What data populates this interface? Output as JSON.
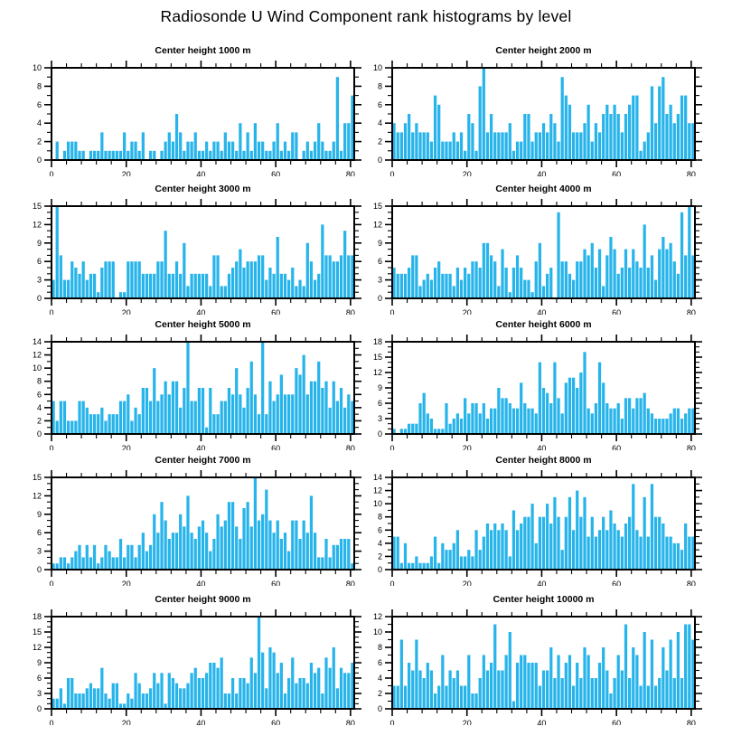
{
  "chart_data": {
    "type": "bar",
    "title": "Radiosonde U Wind Component rank histograms by level",
    "layout": {
      "rows": 5,
      "cols": 2,
      "grid": false,
      "legend": "none",
      "ticks": "outward-all-sides"
    },
    "bar_color": "#27b4ea",
    "axis_color": "#000000",
    "bins": 81,
    "x_range": [
      0,
      81
    ],
    "x_major_ticks": [
      0,
      20,
      40,
      60,
      80
    ],
    "x_minor_step": 4,
    "xlabel": "",
    "ylabel": "",
    "charts": [
      {
        "title": "Center height 1000 m",
        "ylim": [
          0,
          10
        ],
        "ytick_step": 2,
        "values": [
          0,
          2,
          0,
          1,
          2,
          2,
          2,
          1,
          1,
          0,
          1,
          1,
          1,
          3,
          1,
          1,
          1,
          1,
          1,
          3,
          1,
          2,
          2,
          1,
          3,
          0,
          1,
          1,
          0,
          1,
          2,
          3,
          2,
          5,
          3,
          1,
          2,
          2,
          3,
          1,
          1,
          2,
          1,
          2,
          2,
          1,
          3,
          2,
          2,
          1,
          4,
          1,
          3,
          1,
          4,
          2,
          2,
          1,
          1,
          2,
          4,
          1,
          2,
          1,
          3,
          3,
          0,
          1,
          2,
          1,
          2,
          4,
          2,
          1,
          1,
          2,
          9,
          1,
          4,
          4,
          7
        ]
      },
      {
        "title": "Center height 2000 m",
        "ylim": [
          0,
          10
        ],
        "ytick_step": 2,
        "values": [
          4,
          3,
          3,
          4,
          5,
          3,
          4,
          3,
          3,
          3,
          2,
          7,
          6,
          2,
          2,
          2,
          3,
          2,
          3,
          1,
          5,
          4,
          1,
          8,
          10,
          3,
          5,
          3,
          3,
          3,
          3,
          4,
          1,
          2,
          2,
          5,
          5,
          2,
          3,
          3,
          4,
          3,
          5,
          4,
          2,
          9,
          7,
          6,
          3,
          3,
          3,
          4,
          6,
          2,
          4,
          3,
          5,
          6,
          5,
          6,
          5,
          3,
          5,
          6,
          7,
          7,
          1,
          2,
          3,
          8,
          4,
          8,
          9,
          5,
          6,
          4,
          5,
          7,
          7,
          4,
          4
        ]
      },
      {
        "title": "Center height 3000 m",
        "ylim": [
          0,
          15
        ],
        "ytick_step": 3,
        "values": [
          3,
          15,
          7,
          3,
          3,
          6,
          5,
          4,
          6,
          3,
          4,
          4,
          1,
          5,
          6,
          6,
          6,
          0,
          1,
          1,
          6,
          6,
          6,
          6,
          4,
          4,
          4,
          4,
          6,
          6,
          11,
          4,
          4,
          6,
          4,
          9,
          2,
          4,
          4,
          4,
          4,
          4,
          2,
          7,
          7,
          2,
          2,
          4,
          5,
          6,
          8,
          5,
          6,
          6,
          6,
          7,
          7,
          3,
          5,
          4,
          10,
          4,
          4,
          3,
          5,
          2,
          3,
          2,
          9,
          6,
          3,
          4,
          12,
          7,
          7,
          6,
          6,
          7,
          11,
          7,
          7
        ]
      },
      {
        "title": "Center height 4000 m",
        "ylim": [
          0,
          15
        ],
        "ytick_step": 3,
        "values": [
          5,
          4,
          4,
          4,
          5,
          7,
          7,
          2,
          3,
          4,
          3,
          5,
          6,
          4,
          4,
          4,
          2,
          5,
          3,
          5,
          4,
          6,
          6,
          5,
          9,
          9,
          7,
          6,
          2,
          8,
          5,
          1,
          5,
          7,
          5,
          3,
          3,
          1,
          6,
          9,
          2,
          4,
          5,
          0,
          14,
          6,
          6,
          4,
          3,
          6,
          6,
          8,
          7,
          9,
          5,
          8,
          2,
          7,
          10,
          8,
          4,
          5,
          8,
          5,
          8,
          6,
          5,
          12,
          5,
          7,
          3,
          8,
          10,
          8,
          9,
          6,
          4,
          14,
          7,
          15,
          7
        ]
      },
      {
        "title": "Center height 5000 m",
        "ylim": [
          0,
          14
        ],
        "ytick_step": 2,
        "values": [
          5,
          2,
          5,
          5,
          2,
          2,
          2,
          5,
          5,
          4,
          3,
          3,
          3,
          4,
          2,
          3,
          3,
          3,
          5,
          5,
          6,
          2,
          4,
          3,
          7,
          7,
          5,
          10,
          5,
          6,
          8,
          6,
          8,
          8,
          4,
          7,
          14,
          5,
          5,
          7,
          7,
          1,
          7,
          3,
          3,
          5,
          5,
          7,
          6,
          10,
          6,
          4,
          7,
          11,
          6,
          3,
          14,
          3,
          8,
          5,
          6,
          9,
          6,
          6,
          6,
          10,
          9,
          12,
          6,
          8,
          8,
          11,
          7,
          8,
          4,
          8,
          5,
          7,
          4,
          6,
          5
        ]
      },
      {
        "title": "Center height 6000 m",
        "ylim": [
          0,
          18
        ],
        "ytick_step": 3,
        "values": [
          1,
          0,
          1,
          1,
          2,
          2,
          2,
          6,
          8,
          4,
          3,
          1,
          1,
          1,
          6,
          2,
          3,
          4,
          3,
          7,
          4,
          6,
          6,
          4,
          6,
          3,
          5,
          5,
          9,
          7,
          7,
          6,
          5,
          5,
          10,
          6,
          5,
          5,
          4,
          14,
          9,
          8,
          6,
          14,
          7,
          4,
          10,
          11,
          11,
          9,
          12,
          16,
          5,
          4,
          6,
          14,
          10,
          6,
          5,
          5,
          6,
          3,
          7,
          7,
          5,
          7,
          7,
          8,
          5,
          4,
          3,
          3,
          3,
          3,
          4,
          5,
          5,
          3,
          4,
          5,
          5
        ]
      },
      {
        "title": "Center height 7000 m",
        "ylim": [
          0,
          15
        ],
        "ytick_step": 3,
        "values": [
          1,
          1,
          2,
          2,
          1,
          2,
          3,
          4,
          2,
          4,
          2,
          4,
          1,
          2,
          4,
          3,
          2,
          2,
          5,
          2,
          4,
          4,
          2,
          4,
          6,
          3,
          4,
          9,
          6,
          11,
          8,
          5,
          6,
          6,
          9,
          7,
          12,
          6,
          5,
          7,
          8,
          6,
          3,
          5,
          9,
          7,
          8,
          11,
          11,
          7,
          5,
          10,
          11,
          7,
          15,
          8,
          9,
          13,
          8,
          6,
          8,
          5,
          6,
          3,
          8,
          8,
          5,
          8,
          6,
          12,
          6,
          2,
          2,
          5,
          2,
          4,
          4,
          5,
          5,
          5,
          1
        ]
      },
      {
        "title": "Center height 8000 m",
        "ylim": [
          0,
          14
        ],
        "ytick_step": 2,
        "values": [
          5,
          5,
          1,
          4,
          1,
          1,
          2,
          1,
          1,
          1,
          2,
          5,
          1,
          4,
          3,
          3,
          4,
          6,
          2,
          2,
          3,
          2,
          6,
          3,
          5,
          7,
          6,
          7,
          6,
          7,
          6,
          2,
          9,
          6,
          7,
          8,
          8,
          10,
          4,
          8,
          8,
          10,
          7,
          11,
          8,
          3,
          8,
          11,
          6,
          12,
          8,
          11,
          5,
          8,
          5,
          6,
          8,
          6,
          9,
          7,
          6,
          5,
          7,
          8,
          13,
          6,
          5,
          11,
          5,
          13,
          8,
          8,
          7,
          5,
          5,
          4,
          4,
          3,
          7,
          5,
          5
        ]
      },
      {
        "title": "Center height 9000 m",
        "ylim": [
          0,
          18
        ],
        "ytick_step": 3,
        "values": [
          2,
          2,
          4,
          1,
          6,
          6,
          3,
          3,
          3,
          4,
          5,
          4,
          4,
          8,
          3,
          2,
          5,
          5,
          1,
          1,
          3,
          2,
          7,
          5,
          3,
          3,
          4,
          7,
          5,
          7,
          1,
          7,
          6,
          5,
          4,
          4,
          5,
          7,
          8,
          6,
          6,
          7,
          9,
          9,
          8,
          10,
          3,
          3,
          6,
          3,
          6,
          6,
          5,
          10,
          7,
          18,
          11,
          4,
          12,
          11,
          7,
          9,
          3,
          6,
          10,
          5,
          6,
          6,
          5,
          9,
          7,
          8,
          3,
          10,
          8,
          12,
          4,
          8,
          7,
          7,
          9
        ]
      },
      {
        "title": "Center height 10000 m",
        "ylim": [
          0,
          12
        ],
        "ytick_step": 2,
        "values": [
          3,
          3,
          9,
          3,
          6,
          5,
          9,
          5,
          4,
          6,
          5,
          2,
          3,
          7,
          3,
          5,
          4,
          5,
          3,
          3,
          7,
          2,
          2,
          4,
          7,
          5,
          6,
          11,
          5,
          5,
          7,
          10,
          1,
          6,
          7,
          7,
          6,
          6,
          6,
          3,
          5,
          5,
          8,
          4,
          7,
          4,
          6,
          7,
          3,
          6,
          4,
          8,
          7,
          4,
          4,
          6,
          8,
          5,
          2,
          4,
          7,
          5,
          11,
          4,
          8,
          7,
          3,
          10,
          3,
          9,
          3,
          4,
          8,
          5,
          9,
          4,
          10,
          4,
          11,
          11,
          9
        ]
      }
    ]
  }
}
